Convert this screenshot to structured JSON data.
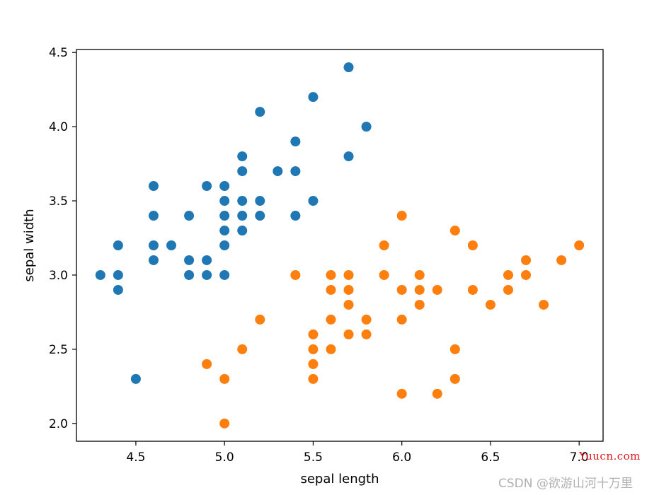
{
  "chart_data": {
    "type": "scatter",
    "xlabel": "sepal length",
    "ylabel": "sepal width",
    "xlim": [
      4.165,
      7.135
    ],
    "ylim": [
      1.88,
      4.52
    ],
    "x_ticks": [
      "4.5",
      "5.0",
      "5.5",
      "6.0",
      "6.5",
      "7.0"
    ],
    "y_ticks": [
      "2.0",
      "2.5",
      "3.0",
      "3.5",
      "4.0",
      "4.5"
    ],
    "grid": false,
    "series": [
      {
        "color": "#1f77b4",
        "points": [
          [
            5.7,
            4.4
          ],
          [
            5.5,
            4.2
          ],
          [
            5.2,
            4.1
          ],
          [
            5.8,
            4.0
          ],
          [
            5.4,
            3.9
          ],
          [
            5.1,
            3.8
          ],
          [
            5.7,
            3.8
          ],
          [
            5.1,
            3.7
          ],
          [
            5.3,
            3.7
          ],
          [
            5.4,
            3.7
          ],
          [
            4.6,
            3.6
          ],
          [
            4.9,
            3.6
          ],
          [
            5.0,
            3.6
          ],
          [
            5.0,
            3.5
          ],
          [
            5.1,
            3.5
          ],
          [
            5.2,
            3.5
          ],
          [
            5.5,
            3.5
          ],
          [
            4.6,
            3.4
          ],
          [
            4.8,
            3.4
          ],
          [
            5.0,
            3.4
          ],
          [
            5.1,
            3.4
          ],
          [
            5.2,
            3.4
          ],
          [
            5.4,
            3.4
          ],
          [
            5.0,
            3.3
          ],
          [
            5.1,
            3.3
          ],
          [
            4.4,
            3.2
          ],
          [
            4.6,
            3.2
          ],
          [
            4.7,
            3.2
          ],
          [
            5.0,
            3.2
          ],
          [
            4.6,
            3.1
          ],
          [
            4.8,
            3.1
          ],
          [
            4.9,
            3.1
          ],
          [
            4.3,
            3.0
          ],
          [
            4.4,
            3.0
          ],
          [
            4.8,
            3.0
          ],
          [
            4.9,
            3.0
          ],
          [
            5.0,
            3.0
          ],
          [
            4.4,
            2.9
          ],
          [
            4.5,
            2.3
          ]
        ]
      },
      {
        "color": "#ff7f0e",
        "points": [
          [
            6.0,
            3.4
          ],
          [
            6.3,
            3.3
          ],
          [
            5.9,
            3.2
          ],
          [
            6.4,
            3.2
          ],
          [
            7.0,
            3.2
          ],
          [
            6.7,
            3.1
          ],
          [
            6.9,
            3.1
          ],
          [
            5.4,
            3.0
          ],
          [
            5.6,
            3.0
          ],
          [
            5.7,
            3.0
          ],
          [
            5.9,
            3.0
          ],
          [
            6.1,
            3.0
          ],
          [
            6.6,
            3.0
          ],
          [
            6.7,
            3.0
          ],
          [
            5.6,
            2.9
          ],
          [
            5.7,
            2.9
          ],
          [
            6.0,
            2.9
          ],
          [
            6.1,
            2.9
          ],
          [
            6.2,
            2.9
          ],
          [
            6.4,
            2.9
          ],
          [
            6.6,
            2.9
          ],
          [
            5.7,
            2.8
          ],
          [
            6.1,
            2.8
          ],
          [
            6.5,
            2.8
          ],
          [
            6.8,
            2.8
          ],
          [
            5.2,
            2.7
          ],
          [
            5.6,
            2.7
          ],
          [
            5.8,
            2.7
          ],
          [
            6.0,
            2.7
          ],
          [
            5.5,
            2.6
          ],
          [
            5.7,
            2.6
          ],
          [
            5.8,
            2.6
          ],
          [
            5.1,
            2.5
          ],
          [
            5.5,
            2.5
          ],
          [
            5.6,
            2.5
          ],
          [
            6.3,
            2.5
          ],
          [
            4.9,
            2.4
          ],
          [
            5.5,
            2.4
          ],
          [
            5.0,
            2.3
          ],
          [
            5.5,
            2.3
          ],
          [
            6.3,
            2.3
          ],
          [
            6.0,
            2.2
          ],
          [
            6.2,
            2.2
          ],
          [
            5.0,
            2.0
          ]
        ]
      }
    ]
  },
  "watermark": {
    "site": "Yuucn.com",
    "csdn": "CSDN @欲游山河十万里"
  }
}
